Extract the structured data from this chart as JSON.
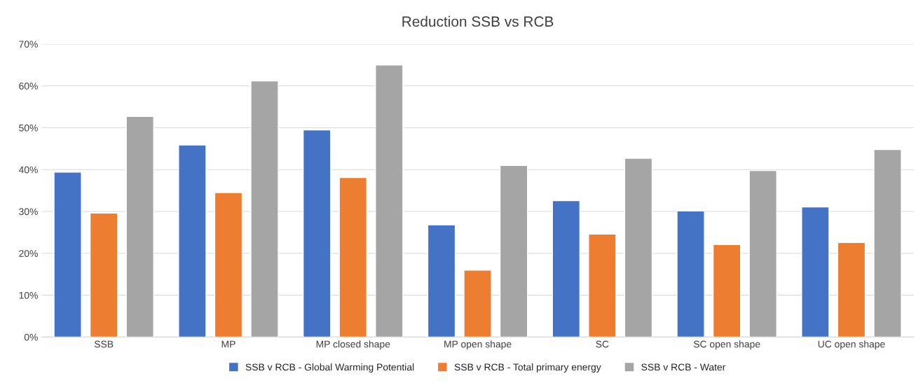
{
  "chart_data": {
    "type": "bar",
    "title": "Reduction SSB vs RCB",
    "categories": [
      "SSB",
      "MP",
      "MP closed shape",
      "MP open shape",
      "SC",
      "SC open shape",
      "UC open shape"
    ],
    "series": [
      {
        "name": "SSB v RCB - Global Warming Potential",
        "color": "#4472c4",
        "values": [
          39.4,
          45.9,
          49.5,
          26.8,
          32.6,
          30.1,
          31.1
        ]
      },
      {
        "name": "SSB v RCB - Total primary energy",
        "color": "#ed7d31",
        "values": [
          29.6,
          34.5,
          38.1,
          16.0,
          24.6,
          22.1,
          22.6
        ]
      },
      {
        "name": "SSB v RCB - Water",
        "color": "#a5a5a5",
        "values": [
          52.7,
          61.2,
          65.0,
          41.0,
          42.7,
          39.8,
          44.8
        ]
      }
    ],
    "ylim": [
      0,
      70
    ],
    "yticks": [
      {
        "value": 0,
        "label": "0%"
      },
      {
        "value": 10,
        "label": "10%"
      },
      {
        "value": 20,
        "label": "20%"
      },
      {
        "value": 30,
        "label": "30%"
      },
      {
        "value": 40,
        "label": "40%"
      },
      {
        "value": 50,
        "label": "50%"
      },
      {
        "value": 60,
        "label": "60%"
      },
      {
        "value": 70,
        "label": "70%"
      }
    ],
    "grid": "y",
    "legend": "bottom"
  }
}
